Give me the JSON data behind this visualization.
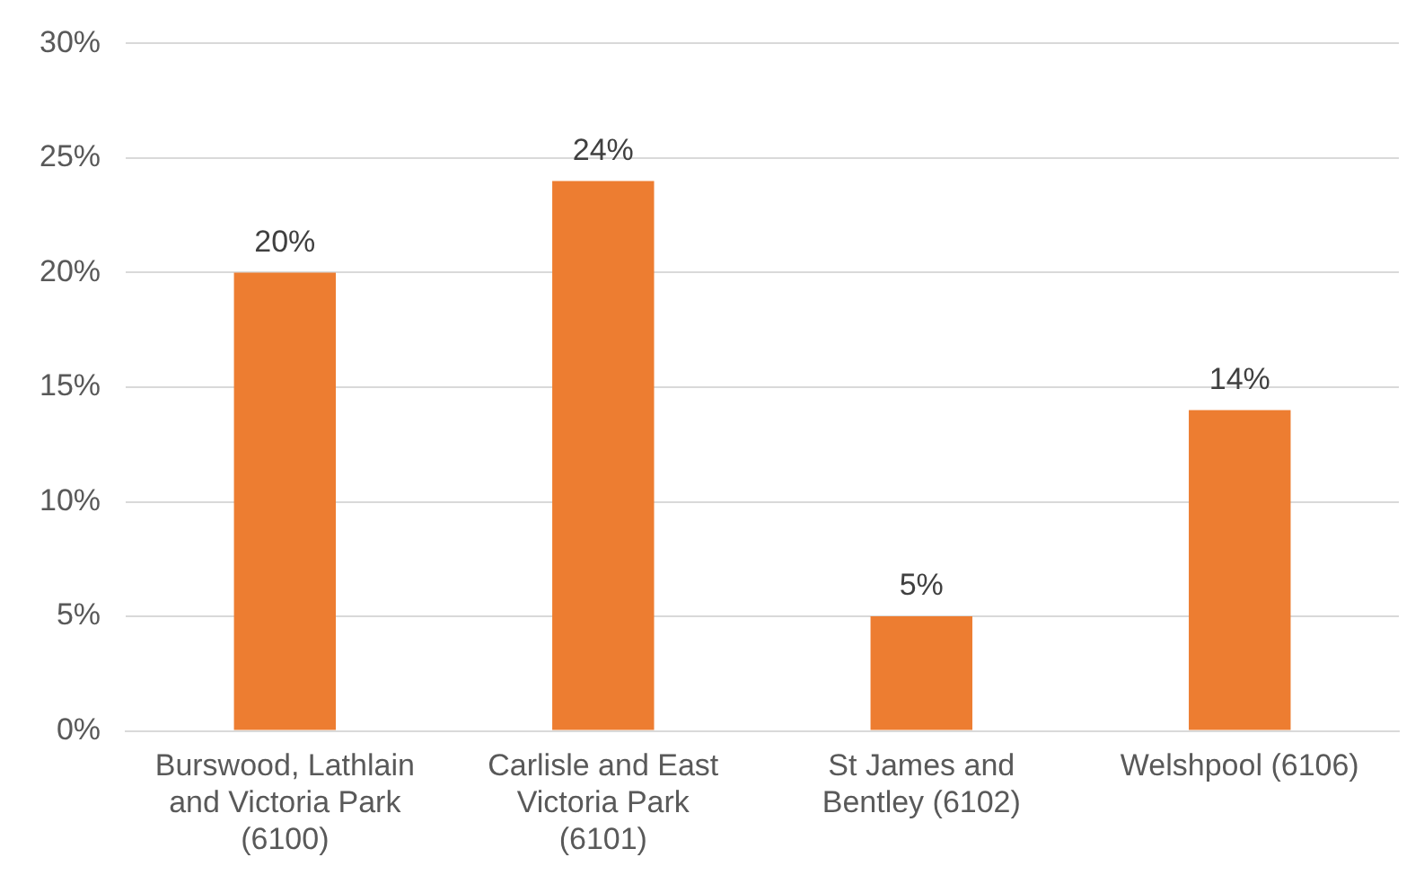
{
  "chart_data": {
    "type": "bar",
    "categories": [
      "Burswood, Lathlain and Victoria Park (6100)",
      "Carlisle and East Victoria Park (6101)",
      "St James and Bentley (6102)",
      "Welshpool (6106)"
    ],
    "values": [
      20,
      24,
      5,
      14
    ],
    "color": "#ed7d31",
    "ylim": [
      0,
      30
    ],
    "yticks": [
      {
        "value": 0,
        "label": "0%"
      },
      {
        "value": 5,
        "label": "5%"
      },
      {
        "value": 10,
        "label": "10%"
      },
      {
        "value": 15,
        "label": "15%"
      },
      {
        "value": 20,
        "label": "20%"
      },
      {
        "value": 25,
        "label": "25%"
      },
      {
        "value": 30,
        "label": "30%"
      }
    ],
    "value_labels": [
      "20%",
      "24%",
      "5%",
      "14%"
    ],
    "grid": "y",
    "legend": false
  }
}
